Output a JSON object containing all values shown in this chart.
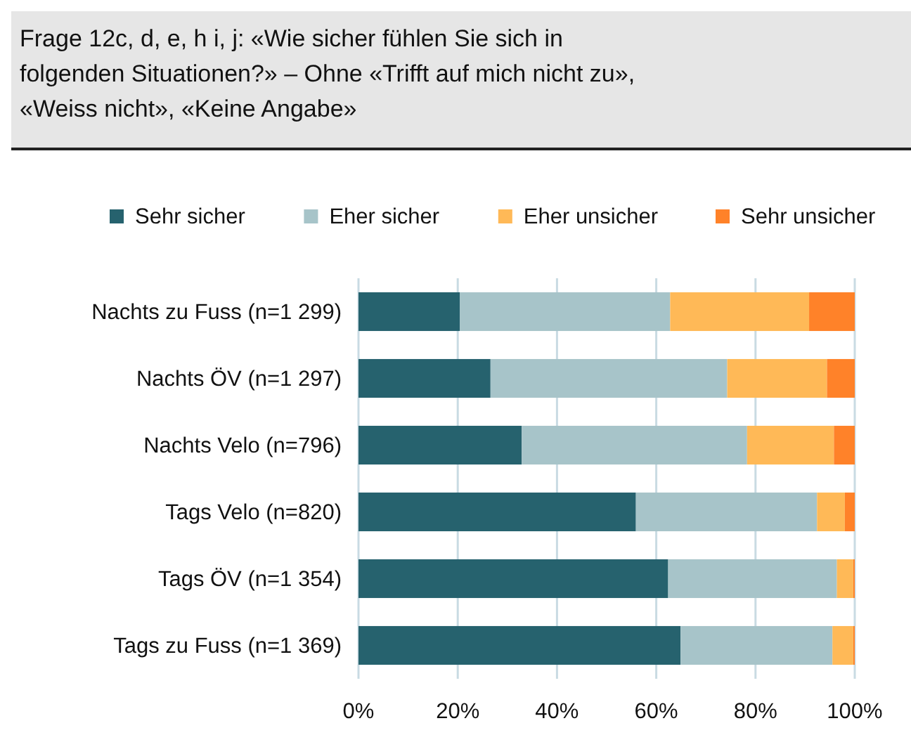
{
  "chart_data": {
    "type": "bar",
    "orientation": "horizontal",
    "stacked": true,
    "title": "Frage 12c, d, e, h i, j: «Wie sicher fühlen Sie sich in folgenden Situationen?» – Ohne «Trifft auf mich nicht zu», «Weiss nicht», «Keine Angabe»",
    "categories": [
      "Nachts zu Fuss (n=1 299)",
      "Nachts ÖV (n=1 297)",
      "Nachts Velo (n=796)",
      "Tags Velo (n=820)",
      "Tags ÖV (n=1 354)",
      "Tags zu Fuss (n=1 369)"
    ],
    "series": [
      {
        "name": "Sehr sicher",
        "color": "#26626e",
        "values": [
          20.4,
          26.6,
          32.9,
          55.9,
          62.4,
          64.9
        ]
      },
      {
        "name": "Eher sicher",
        "color": "#a7c4c9",
        "values": [
          42.4,
          47.7,
          45.4,
          36.5,
          34.0,
          30.6
        ]
      },
      {
        "name": "Eher unsicher",
        "color": "#ffb957",
        "values": [
          28.0,
          20.1,
          17.5,
          5.6,
          3.3,
          4.2
        ]
      },
      {
        "name": "Sehr unsicher",
        "color": "#ff8229",
        "values": [
          9.2,
          5.6,
          4.2,
          2.0,
          0.3,
          0.3
        ]
      }
    ],
    "xlim": [
      0,
      100
    ],
    "xticks": [
      {
        "value": 0,
        "label": "0%"
      },
      {
        "value": 20,
        "label": "20%"
      },
      {
        "value": 40,
        "label": "40%"
      },
      {
        "value": 60,
        "label": "60%"
      },
      {
        "value": 80,
        "label": "80%"
      },
      {
        "value": 100,
        "label": "100%"
      }
    ],
    "grid": "x",
    "legend": "top"
  }
}
